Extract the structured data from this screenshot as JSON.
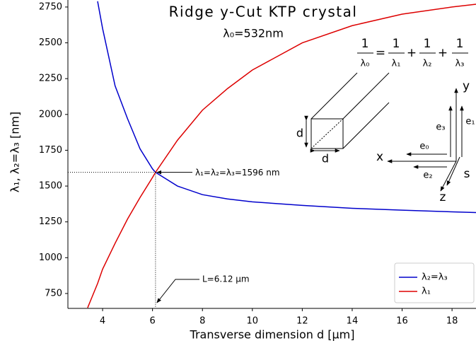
{
  "chart_data": {
    "type": "line",
    "title": "Ridge y-Cut KTP crystal",
    "subtitle": "λ₀=532nm",
    "x_label": "Transverse dimension d [μm]",
    "y_label": "λ₁, λ₂=λ₃ [nm]",
    "x": [
      3.4,
      3.8,
      4,
      4.5,
      5,
      5.5,
      6,
      6.12,
      7,
      8,
      9,
      10,
      12,
      14,
      16,
      18,
      19
    ],
    "series": [
      {
        "name": "λ₂=λ₃",
        "color": "#0000cc",
        "values": [
          null,
          2790,
          2600,
          2200,
          1970,
          1760,
          1620,
          1596,
          1500,
          1440,
          1410,
          1390,
          1365,
          1345,
          1332,
          1320,
          1315
        ]
      },
      {
        "name": "λ₁",
        "color": "#dd0000",
        "values": [
          650,
          820,
          920,
          1100,
          1270,
          1420,
          1560,
          1596,
          1820,
          2030,
          2180,
          2310,
          2500,
          2620,
          2700,
          2750,
          2770
        ]
      }
    ],
    "xlim": [
      2.61,
      18.96
    ],
    "ylim": [
      646,
      2799
    ],
    "xticks": [
      4,
      6,
      8,
      10,
      12,
      14,
      16,
      18
    ],
    "yticks": [
      750,
      1000,
      1250,
      1500,
      1750,
      2000,
      2250,
      2500,
      2750
    ],
    "legend": "lower right",
    "marker_point": {
      "x": 6.12,
      "y": 1596
    },
    "annotations": [
      "λ₁=λ₂=λ₃=1596 nm",
      "L=6.12 μm"
    ],
    "formula": {
      "numerators": [
        "1",
        "1",
        "1",
        "1"
      ],
      "denominators": [
        "λ₀",
        "λ₁",
        "λ₂",
        "λ₃"
      ],
      "operators": [
        "=",
        "+",
        "+"
      ]
    },
    "diagram_labels": [
      "d",
      "d",
      "x",
      "y",
      "z",
      "s",
      "e₃",
      "e₀",
      "e₂",
      "e₁"
    ]
  }
}
